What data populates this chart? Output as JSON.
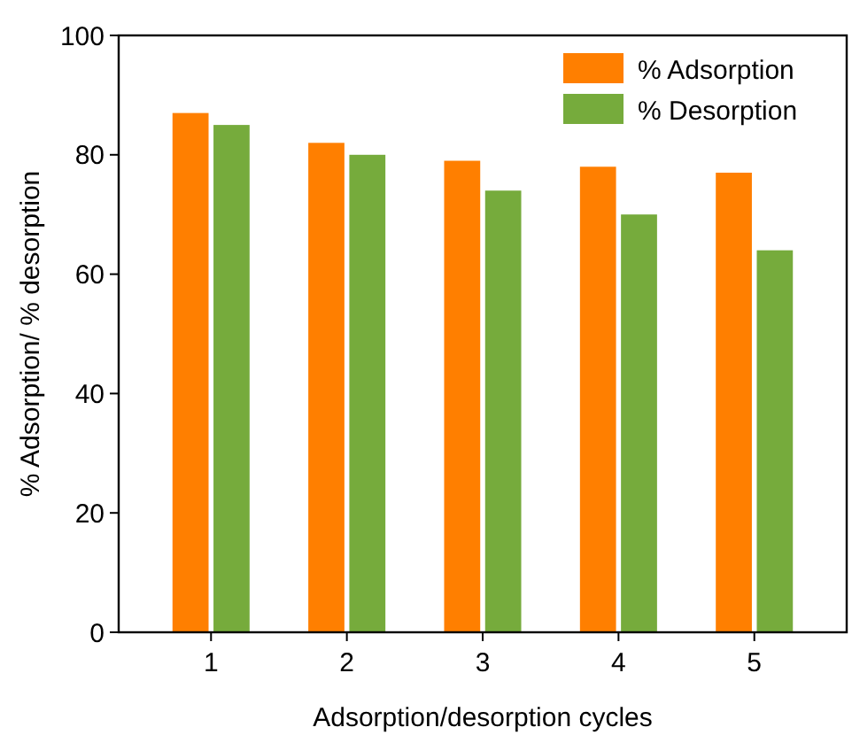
{
  "chart_data": {
    "type": "bar",
    "xlabel": "Adsorption/desorption cycles",
    "ylabel": "% Adsorption/ % desorption",
    "categories": [
      "1",
      "2",
      "3",
      "4",
      "5"
    ],
    "series": [
      {
        "name": "% Adsorption",
        "color": "#ff7f00",
        "values": [
          87,
          82,
          79,
          78,
          77
        ]
      },
      {
        "name": "% Desorption",
        "color": "#76ab3c",
        "values": [
          85,
          80,
          74,
          70,
          64
        ]
      }
    ],
    "ylim": [
      0,
      100
    ],
    "yticks": [
      0,
      20,
      40,
      60,
      80,
      100
    ],
    "legend": "top right"
  }
}
